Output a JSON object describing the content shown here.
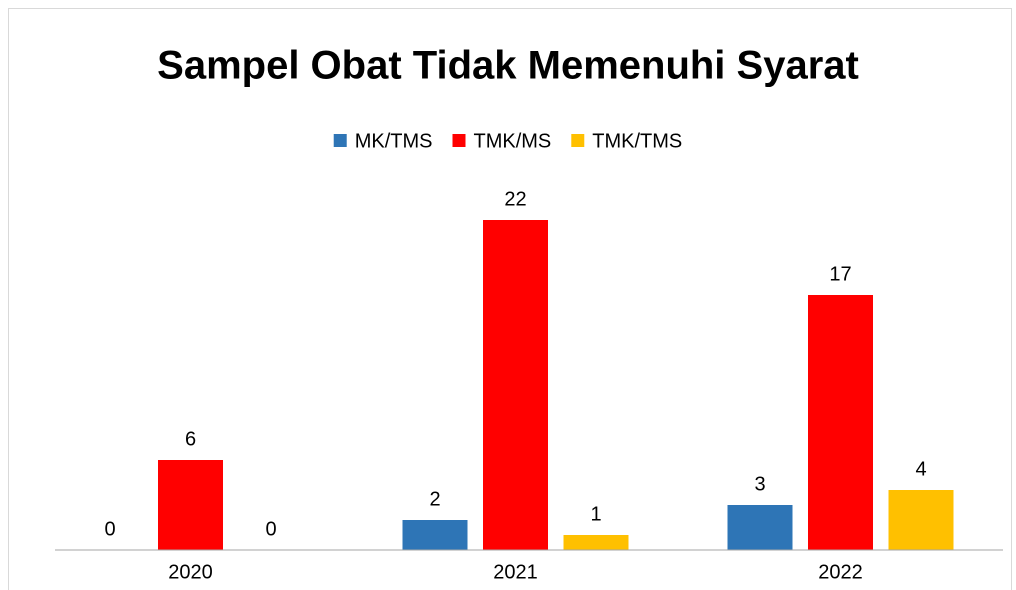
{
  "chart_data": {
    "type": "bar",
    "title": "Sampel Obat Tidak Memenuhi Syarat",
    "categories": [
      "2020",
      "2021",
      "2022"
    ],
    "series": [
      {
        "name": "MK/TMS",
        "color": "#2e75b6",
        "values": [
          0,
          2,
          3
        ]
      },
      {
        "name": "TMK/MS",
        "color": "#ff0000",
        "values": [
          6,
          22,
          17
        ]
      },
      {
        "name": "TMK/TMS",
        "color": "#ffc000",
        "values": [
          0,
          1,
          4
        ]
      }
    ],
    "ylim": [
      0,
      24
    ],
    "grid": false,
    "legend": "top"
  }
}
